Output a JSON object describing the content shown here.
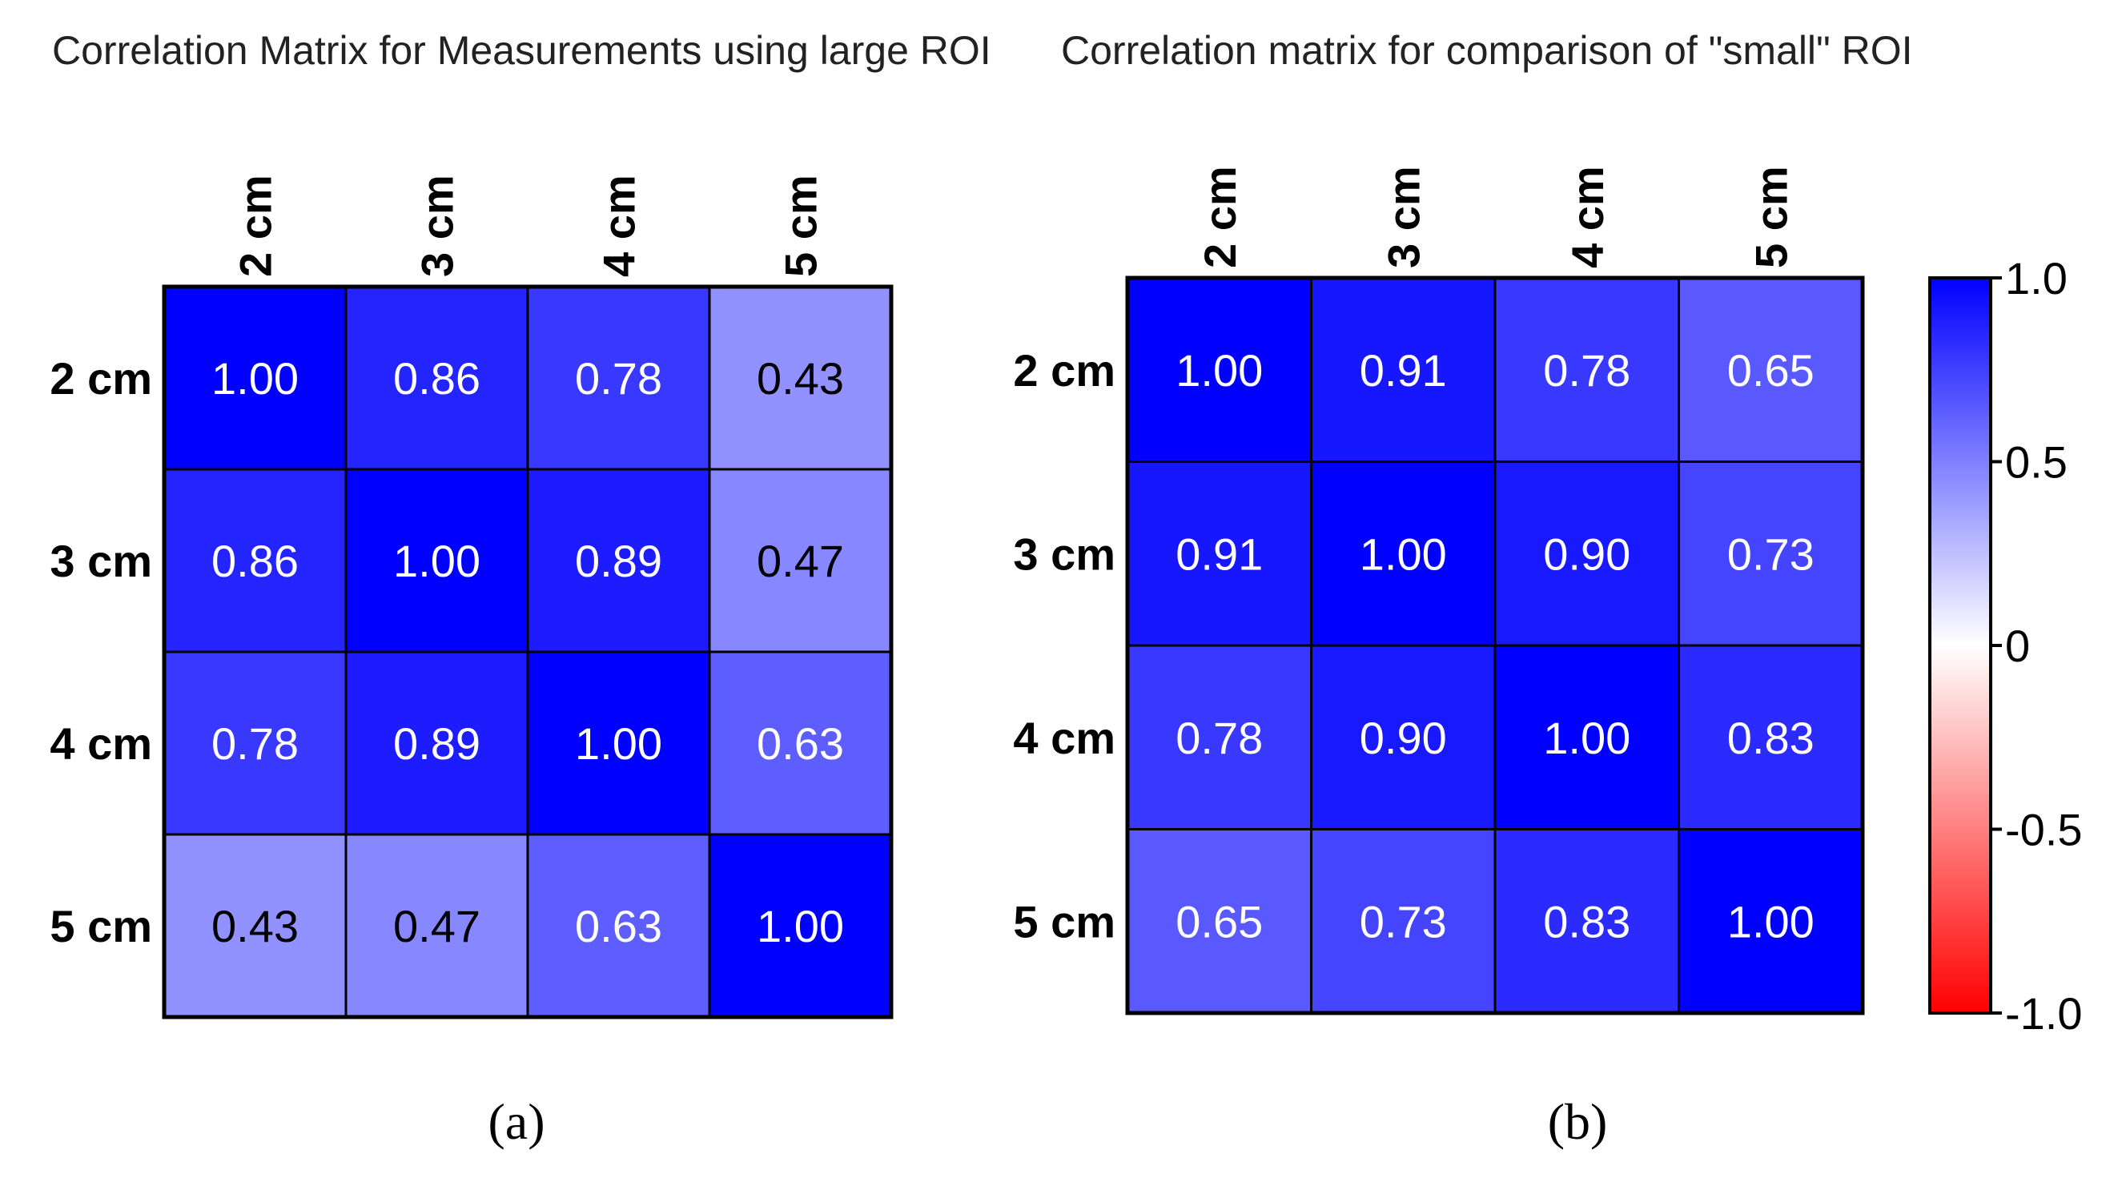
{
  "chart_data": [
    {
      "type": "heatmap",
      "title": "Correlation Matrix for Measurements using large ROI",
      "caption": "(a)",
      "rows": [
        "2 cm",
        "3 cm",
        "4 cm",
        "5 cm"
      ],
      "columns": [
        "2 cm",
        "3 cm",
        "4 cm",
        "5 cm"
      ],
      "values": [
        [
          1.0,
          0.86,
          0.78,
          0.43
        ],
        [
          0.86,
          1.0,
          0.89,
          0.47
        ],
        [
          0.78,
          0.89,
          1.0,
          0.63
        ],
        [
          0.43,
          0.47,
          0.63,
          1.0
        ]
      ],
      "labels": [
        [
          "1.00",
          "0.86",
          "0.78",
          "0.43"
        ],
        [
          "0.86",
          "1.00",
          "0.89",
          "0.47"
        ],
        [
          "0.78",
          "0.89",
          "1.00",
          "0.63"
        ],
        [
          "0.43",
          "0.47",
          "0.63",
          "1.00"
        ]
      ]
    },
    {
      "type": "heatmap",
      "title": "Correlation matrix for comparison of \"small\" ROI",
      "caption": "(b)",
      "rows": [
        "2 cm",
        "3 cm",
        "4 cm",
        "5 cm"
      ],
      "columns": [
        "2 cm",
        "3 cm",
        "4 cm",
        "5 cm"
      ],
      "values": [
        [
          1.0,
          0.91,
          0.78,
          0.65
        ],
        [
          0.91,
          1.0,
          0.9,
          0.73
        ],
        [
          0.78,
          0.9,
          1.0,
          0.83
        ],
        [
          0.65,
          0.73,
          0.83,
          1.0
        ]
      ],
      "labels": [
        [
          "1.00",
          "0.91",
          "0.78",
          "0.65"
        ],
        [
          "0.91",
          "1.00",
          "0.90",
          "0.73"
        ],
        [
          "0.78",
          "0.90",
          "1.00",
          "0.83"
        ],
        [
          "0.65",
          "0.73",
          "0.83",
          "1.00"
        ]
      ]
    }
  ],
  "colorbar": {
    "range": [
      -1.0,
      1.0
    ],
    "ticks": [
      1.0,
      0.5,
      0,
      -0.5,
      -1.0
    ],
    "tick_labels": [
      "1.0",
      "0.5",
      "0",
      "-0.5",
      "-1.0"
    ],
    "colors": {
      "high": "#0000ff",
      "mid": "#ffffff",
      "low": "#ff0000"
    }
  }
}
